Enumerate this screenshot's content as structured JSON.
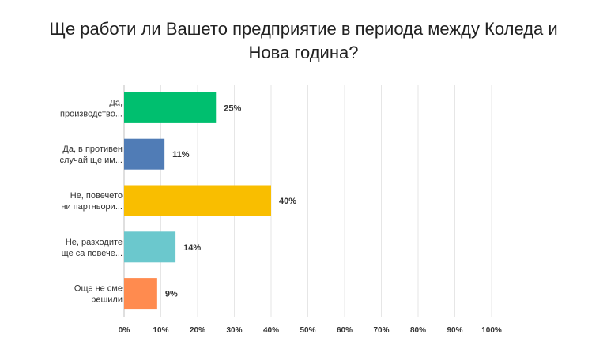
{
  "chart_data": {
    "type": "bar",
    "orientation": "horizontal",
    "title_lines": [
      "Ще работи ли Вашето предприятие в периода между Коледа и",
      "Нова година?"
    ],
    "categories": [
      [
        "Да,",
        "производство..."
      ],
      [
        "Да, в противен",
        "случай ще им..."
      ],
      [
        "Не, повечето",
        "ни партньори..."
      ],
      [
        "Не, разходите",
        "ще са повече..."
      ],
      [
        "Още не сме",
        "решили"
      ]
    ],
    "values": [
      25,
      11,
      40,
      14,
      9
    ],
    "value_labels": [
      "25%",
      "11%",
      "40%",
      "14%",
      "9%"
    ],
    "colors": [
      "#00bf6f",
      "#507cb6",
      "#f9be00",
      "#6bc8cd",
      "#ff8b4f"
    ],
    "xlim": [
      0,
      100
    ],
    "x_ticks": [
      "0%",
      "10%",
      "20%",
      "30%",
      "40%",
      "50%",
      "60%",
      "70%",
      "80%",
      "90%",
      "100%"
    ],
    "grid": true
  }
}
